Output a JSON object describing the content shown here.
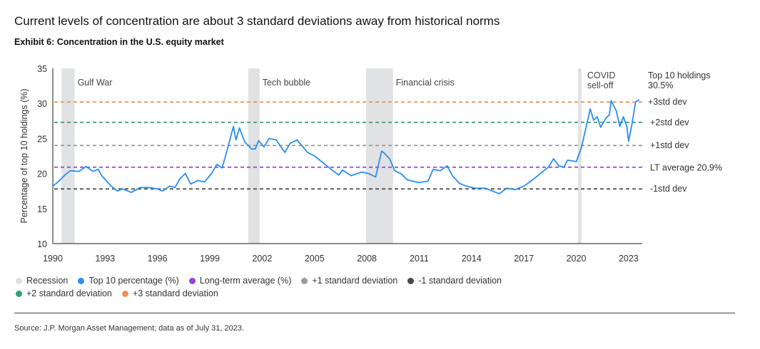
{
  "header": {
    "title": "Current levels of concentration are about 3 standard deviations away from historical norms",
    "subtitle": "Exhibit 6: Concentration in the U.S. equity market"
  },
  "colors": {
    "recession": "#e1e2e4",
    "top10": "#2a8ef0",
    "lt_average": "#9146d6",
    "plus1": "#9a9a9a",
    "minus1": "#4a4a4a",
    "plus2": "#2aa56c",
    "plus3": "#f08e4e"
  },
  "chart_data": {
    "type": "line",
    "title": "Concentration in the U.S. equity market",
    "xlabel": "",
    "ylabel": "Percentage of top 10 holdings (%)",
    "xlim": [
      1990,
      2023.7
    ],
    "ylim": [
      10,
      35
    ],
    "x_ticks": [
      1990,
      1993,
      1996,
      1999,
      2002,
      2005,
      2008,
      2011,
      2014,
      2017,
      2020,
      2023
    ],
    "y_ticks": [
      10,
      15,
      20,
      25,
      30,
      35
    ],
    "grid": false,
    "legend_placement": "bottom",
    "recessions": [
      {
        "start": 1990.5,
        "end": 1991.25,
        "label": "Gulf War"
      },
      {
        "start": 2001.2,
        "end": 2001.85,
        "label": "Tech bubble"
      },
      {
        "start": 2007.95,
        "end": 2009.5,
        "label": "Financial crisis"
      },
      {
        "start": 2020.1,
        "end": 2020.3,
        "label": "COVID",
        "label2": "sell-off"
      }
    ],
    "reference_lines": [
      {
        "key": "plus3",
        "name": "+3 standard deviation",
        "value": 30.2,
        "label": "+3std dev"
      },
      {
        "key": "plus2",
        "name": "+2 standard deviation",
        "value": 27.3,
        "label": "+2std dev"
      },
      {
        "key": "plus1",
        "name": "+1 standard deviation",
        "value": 24.0,
        "label": "+1std dev"
      },
      {
        "key": "lt_average",
        "name": "Long-term average (%)",
        "value": 20.9,
        "label": "LT average 20.9%"
      },
      {
        "key": "minus1",
        "name": "-1 standard deviation",
        "value": 17.8,
        "label": "-1std dev"
      }
    ],
    "end_annotation": {
      "line1": "Top 10 holdings",
      "line2": "30.5%"
    },
    "series": [
      {
        "name": "Top 10 percentage (%)",
        "x": [
          1990.0,
          1990.3,
          1990.7,
          1991.0,
          1991.5,
          1991.9,
          1992.3,
          1992.6,
          1992.8,
          1993.3,
          1993.7,
          1994.0,
          1994.5,
          1995.0,
          1995.5,
          1996.0,
          1996.3,
          1996.7,
          1997.0,
          1997.3,
          1997.6,
          1997.9,
          1998.3,
          1998.7,
          1999.1,
          1999.4,
          1999.7,
          1999.98,
          2000.2,
          2000.35,
          2000.5,
          2000.7,
          2001.0,
          2001.4,
          2001.6,
          2001.8,
          2002.1,
          2002.4,
          2002.8,
          2003.3,
          2003.6,
          2004.0,
          2004.6,
          2005.0,
          2005.5,
          2006.1,
          2006.4,
          2006.6,
          2007.1,
          2007.7,
          2008.1,
          2008.5,
          2008.85,
          2009.0,
          2009.3,
          2009.6,
          2010.0,
          2010.3,
          2011.0,
          2011.5,
          2011.8,
          2012.2,
          2012.6,
          2012.9,
          2013.3,
          2013.7,
          2014.2,
          2014.8,
          2015.3,
          2015.6,
          2016.0,
          2016.5,
          2017.0,
          2017.5,
          2018.0,
          2018.4,
          2018.7,
          2019.0,
          2019.3,
          2019.5,
          2020.0,
          2020.3,
          2020.5,
          2020.8,
          2021.0,
          2021.2,
          2021.4,
          2021.7,
          2021.9,
          2022.0,
          2022.3,
          2022.5,
          2022.7,
          2022.9,
          2023.0,
          2023.2,
          2023.4,
          2023.6
        ],
        "values": [
          18.2,
          18.8,
          19.8,
          20.4,
          20.3,
          21.0,
          20.3,
          20.6,
          19.7,
          18.3,
          17.5,
          17.8,
          17.3,
          18.0,
          18.0,
          17.8,
          17.5,
          18.2,
          18.0,
          19.3,
          20.0,
          18.5,
          19.0,
          18.8,
          20.0,
          21.3,
          20.8,
          23.2,
          25.3,
          26.7,
          24.8,
          26.5,
          24.5,
          23.5,
          23.5,
          24.7,
          23.8,
          25.0,
          24.8,
          23.0,
          24.3,
          24.8,
          23.0,
          22.5,
          21.5,
          20.3,
          19.8,
          20.5,
          19.7,
          20.2,
          20.0,
          19.5,
          23.2,
          22.9,
          22.1,
          20.4,
          19.9,
          19.1,
          18.7,
          18.9,
          20.6,
          20.4,
          21.1,
          19.7,
          18.6,
          18.2,
          17.9,
          17.9,
          17.4,
          17.1,
          17.9,
          17.7,
          18.2,
          19.1,
          20.1,
          20.9,
          22.1,
          21.1,
          20.9,
          21.9,
          21.7,
          23.7,
          25.9,
          29.2,
          27.6,
          28.1,
          26.6,
          27.9,
          28.4,
          30.4,
          28.9,
          26.7,
          28.1,
          26.7,
          24.6,
          27.1,
          30.2,
          30.5
        ]
      }
    ]
  },
  "legend": {
    "items": [
      {
        "label": "Recession",
        "key": "recession"
      },
      {
        "label": "Top 10 percentage (%)",
        "key": "top10"
      },
      {
        "label": "Long-term average (%)",
        "key": "lt_average"
      },
      {
        "label": "+1 standard deviation",
        "key": "plus1"
      },
      {
        "label": "-1 standard deviation",
        "key": "minus1"
      },
      {
        "label": "+2 standard deviation",
        "key": "plus2"
      },
      {
        "label": "+3 standard deviation",
        "key": "plus3"
      }
    ]
  },
  "footer": {
    "source": "Source: J.P. Morgan Asset Management; data as of July 31, 2023."
  }
}
